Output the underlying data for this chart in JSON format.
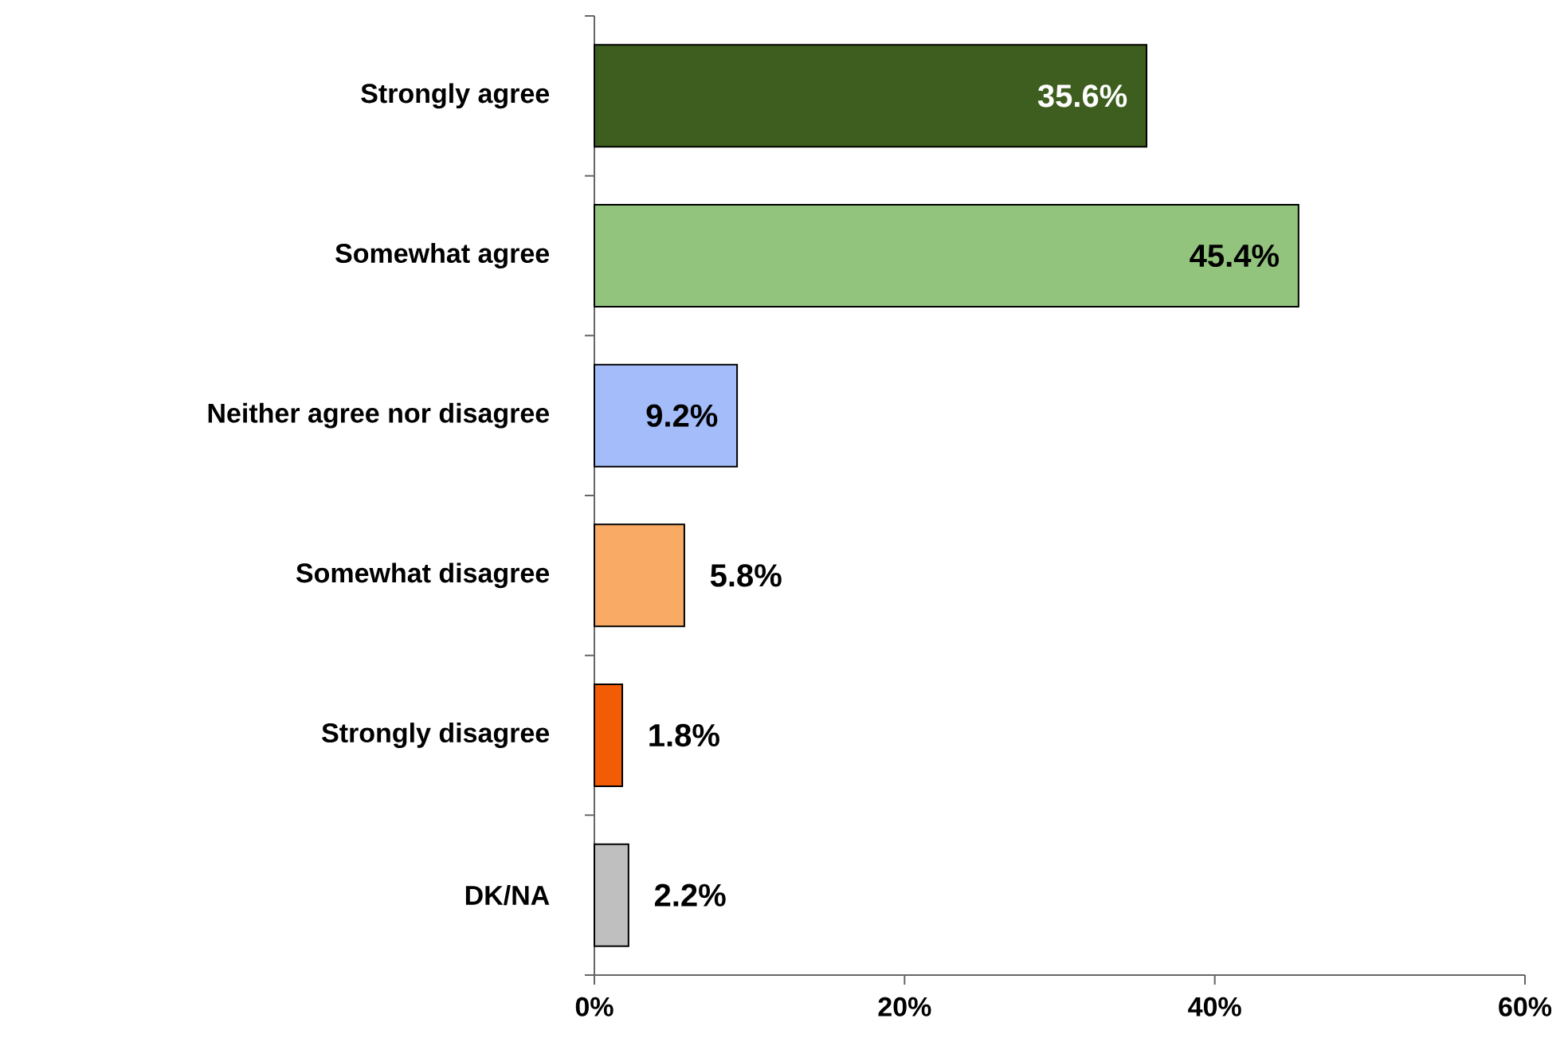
{
  "chart_data": {
    "type": "bar",
    "orientation": "horizontal",
    "categories": [
      "Strongly agree",
      "Somewhat agree",
      "Neither agree nor disagree",
      "Somewhat disagree",
      "Strongly disagree",
      "DK/NA"
    ],
    "values": [
      35.6,
      45.4,
      9.2,
      5.8,
      1.8,
      2.2
    ],
    "colors": [
      "#3d5e1e",
      "#93c47d",
      "#a4bdfa",
      "#f9ab66",
      "#f25c05",
      "#bfbfbf"
    ],
    "value_labels": [
      "35.6%",
      "45.4%",
      "9.2%",
      "5.8%",
      "1.8%",
      "2.2%"
    ],
    "xlim": [
      0,
      60
    ],
    "xticks": [
      {
        "value": 0,
        "label": "0%"
      },
      {
        "value": 20,
        "label": "20%"
      },
      {
        "value": 40,
        "label": "40%"
      },
      {
        "value": 60,
        "label": "60%"
      }
    ]
  }
}
